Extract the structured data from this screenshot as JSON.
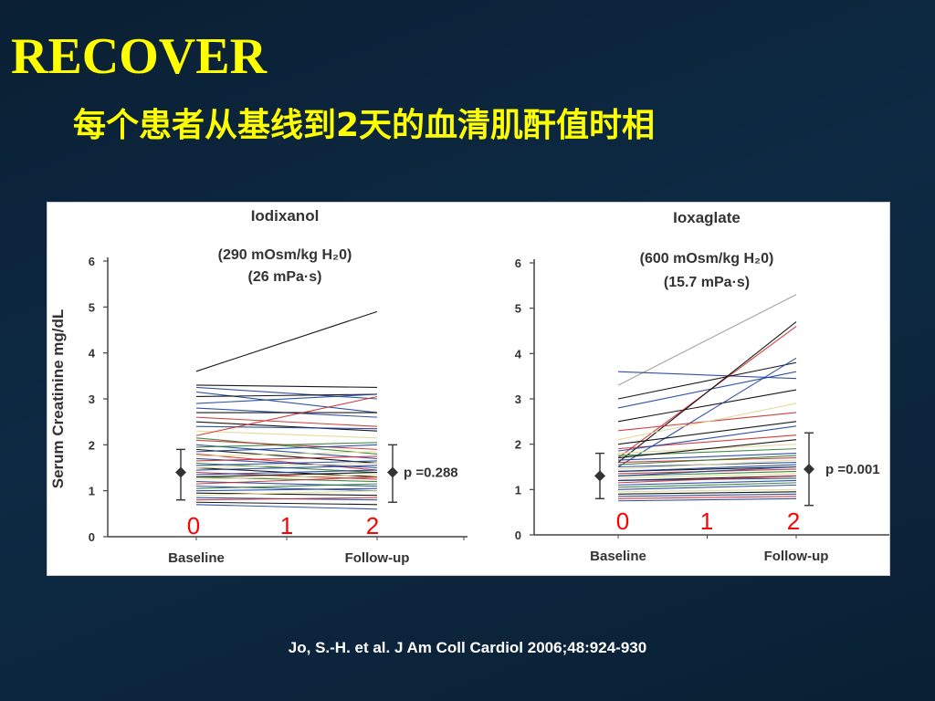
{
  "slide": {
    "title": "RECOVER",
    "subtitle": "每个患者从基线到2天的血清肌酐值时相",
    "citation": "Jo, S.-H. et al. J Am Coll Cardiol 2006;48:924-930"
  },
  "colors": {
    "title_text": "#ffff00",
    "background": "#0b2238",
    "annotation_red": "#ff0000"
  },
  "chart_data": [
    {
      "type": "line",
      "title": "Iodixanol",
      "subtitle_lines": [
        "(290 mOsm/kg H₂0)",
        "(26 mPa·s)"
      ],
      "ylabel": "Serum Creatinine mg/dL",
      "xlabel": "",
      "categories": [
        "Baseline",
        "Follow-up"
      ],
      "ylim": [
        0,
        6
      ],
      "yticks": [
        0,
        1,
        2,
        3,
        4,
        5,
        6
      ],
      "grid": false,
      "legend": "none",
      "p_value_label": "p =0.288",
      "summary": {
        "baseline": {
          "mean": 1.4,
          "low": 0.8,
          "high": 1.9
        },
        "followup": {
          "mean": 1.4,
          "low": 0.75,
          "high": 2.0
        }
      },
      "day_annotations": [
        "0",
        "1",
        "2"
      ],
      "series": [
        {
          "values": [
            3.6,
            4.9
          ],
          "color": "#000000"
        },
        {
          "values": [
            3.3,
            3.25
          ],
          "color": "#000000"
        },
        {
          "values": [
            3.25,
            3.0
          ],
          "color": "#1a3f9c"
        },
        {
          "values": [
            3.15,
            2.7
          ],
          "color": "#1a3f9c"
        },
        {
          "values": [
            3.05,
            3.1
          ],
          "color": "#000000"
        },
        {
          "values": [
            2.9,
            3.1
          ],
          "color": "#1a3f9c"
        },
        {
          "values": [
            2.8,
            2.6
          ],
          "color": "#1a3f9c"
        },
        {
          "values": [
            2.7,
            2.7
          ],
          "color": "#000000"
        },
        {
          "values": [
            2.6,
            2.4
          ],
          "color": "#cc2a2a"
        },
        {
          "values": [
            2.5,
            2.3
          ],
          "color": "#000000"
        },
        {
          "values": [
            2.4,
            2.35
          ],
          "color": "#1a3f9c"
        },
        {
          "values": [
            2.3,
            2.15
          ],
          "color": "#e0d890"
        },
        {
          "values": [
            2.2,
            3.05
          ],
          "color": "#cc2a2a"
        },
        {
          "values": [
            2.15,
            1.8
          ],
          "color": "#2e7d32"
        },
        {
          "values": [
            2.1,
            1.9
          ],
          "color": "#cc2a2a"
        },
        {
          "values": [
            2.0,
            1.7
          ],
          "color": "#1a3f9c"
        },
        {
          "values": [
            1.95,
            2.05
          ],
          "color": "#2e7d32"
        },
        {
          "values": [
            1.9,
            1.6
          ],
          "color": "#000000"
        },
        {
          "values": [
            1.85,
            2.0
          ],
          "color": "#1a3f9c"
        },
        {
          "values": [
            1.8,
            1.45
          ],
          "color": "#cc2a2a"
        },
        {
          "values": [
            1.75,
            1.85
          ],
          "color": "#e0d890"
        },
        {
          "values": [
            1.7,
            1.5
          ],
          "color": "#1a3f9c"
        },
        {
          "values": [
            1.65,
            1.75
          ],
          "color": "#cc2a2a"
        },
        {
          "values": [
            1.6,
            1.4
          ],
          "color": "#2e7d32"
        },
        {
          "values": [
            1.55,
            1.65
          ],
          "color": "#1a3f9c"
        },
        {
          "values": [
            1.5,
            1.3
          ],
          "color": "#000000"
        },
        {
          "values": [
            1.5,
            1.6
          ],
          "color": "#e0d890"
        },
        {
          "values": [
            1.45,
            1.55
          ],
          "color": "#1a3f9c"
        },
        {
          "values": [
            1.4,
            1.25
          ],
          "color": "#cc2a2a"
        },
        {
          "values": [
            1.35,
            1.45
          ],
          "color": "#1a3f9c"
        },
        {
          "values": [
            1.3,
            1.2
          ],
          "color": "#2e7d32"
        },
        {
          "values": [
            1.3,
            1.4
          ],
          "color": "#000000"
        },
        {
          "values": [
            1.25,
            1.35
          ],
          "color": "#e0d890"
        },
        {
          "values": [
            1.2,
            1.1
          ],
          "color": "#1a3f9c"
        },
        {
          "values": [
            1.15,
            1.3
          ],
          "color": "#cc2a2a"
        },
        {
          "values": [
            1.1,
            1.0
          ],
          "color": "#1a3f9c"
        },
        {
          "values": [
            1.05,
            1.15
          ],
          "color": "#2e7d32"
        },
        {
          "values": [
            1.0,
            1.05
          ],
          "color": "#1a3f9c"
        },
        {
          "values": [
            0.95,
            0.9
          ],
          "color": "#000000"
        },
        {
          "values": [
            0.9,
            1.0
          ],
          "color": "#e0d890"
        },
        {
          "values": [
            0.85,
            0.8
          ],
          "color": "#1a3f9c"
        },
        {
          "values": [
            0.8,
            0.85
          ],
          "color": "#cc2a2a"
        },
        {
          "values": [
            0.75,
            0.7
          ],
          "color": "#000000"
        },
        {
          "values": [
            0.7,
            0.6
          ],
          "color": "#1a3f9c"
        }
      ]
    },
    {
      "type": "line",
      "title": "Ioxaglate",
      "subtitle_lines": [
        "(600 mOsm/kg H₂0)",
        "(15.7 mPa·s)"
      ],
      "ylabel": "",
      "xlabel": "",
      "categories": [
        "Baseline",
        "Follow-up"
      ],
      "ylim": [
        0,
        6
      ],
      "yticks": [
        0,
        1,
        2,
        3,
        4,
        5,
        6
      ],
      "grid": false,
      "legend": "none",
      "p_value_label": "p =0.001",
      "summary": {
        "baseline": {
          "mean": 1.3,
          "low": 0.8,
          "high": 1.8
        },
        "followup": {
          "mean": 1.45,
          "low": 0.65,
          "high": 2.25
        }
      },
      "day_annotations": [
        "0",
        "1",
        "2"
      ],
      "series": [
        {
          "values": [
            3.3,
            5.3
          ],
          "color": "#9a9a9a"
        },
        {
          "values": [
            3.6,
            3.45
          ],
          "color": "#1a3f9c"
        },
        {
          "values": [
            3.0,
            3.8
          ],
          "color": "#000000"
        },
        {
          "values": [
            2.8,
            3.6
          ],
          "color": "#1a3f9c"
        },
        {
          "values": [
            2.5,
            3.2
          ],
          "color": "#000000"
        },
        {
          "values": [
            1.7,
            4.6
          ],
          "color": "#cc2a2a"
        },
        {
          "values": [
            1.6,
            4.7
          ],
          "color": "#000000"
        },
        {
          "values": [
            1.5,
            3.9
          ],
          "color": "#1a3f9c"
        },
        {
          "values": [
            2.3,
            2.7
          ],
          "color": "#cc2a2a"
        },
        {
          "values": [
            2.1,
            2.9
          ],
          "color": "#e0d890"
        },
        {
          "values": [
            2.0,
            2.5
          ],
          "color": "#000000"
        },
        {
          "values": [
            1.9,
            2.2
          ],
          "color": "#cc2a2a"
        },
        {
          "values": [
            1.85,
            2.4
          ],
          "color": "#1a3f9c"
        },
        {
          "values": [
            1.8,
            2.0
          ],
          "color": "#e0d890"
        },
        {
          "values": [
            1.75,
            1.9
          ],
          "color": "#2e7d32"
        },
        {
          "values": [
            1.7,
            2.1
          ],
          "color": "#000000"
        },
        {
          "values": [
            1.65,
            1.8
          ],
          "color": "#1a3f9c"
        },
        {
          "values": [
            1.6,
            1.7
          ],
          "color": "#cc2a2a"
        },
        {
          "values": [
            1.55,
            1.75
          ],
          "color": "#2e7d32"
        },
        {
          "values": [
            1.5,
            1.6
          ],
          "color": "#1a3f9c"
        },
        {
          "values": [
            1.45,
            1.65
          ],
          "color": "#e0d890"
        },
        {
          "values": [
            1.4,
            1.5
          ],
          "color": "#000000"
        },
        {
          "values": [
            1.4,
            1.55
          ],
          "color": "#1a3f9c"
        },
        {
          "values": [
            1.35,
            1.45
          ],
          "color": "#cc2a2a"
        },
        {
          "values": [
            1.3,
            1.4
          ],
          "color": "#2e7d32"
        },
        {
          "values": [
            1.3,
            1.5
          ],
          "color": "#1a3f9c"
        },
        {
          "values": [
            1.25,
            1.35
          ],
          "color": "#e0d890"
        },
        {
          "values": [
            1.2,
            1.3
          ],
          "color": "#000000"
        },
        {
          "values": [
            1.2,
            1.25
          ],
          "color": "#1a3f9c"
        },
        {
          "values": [
            1.15,
            1.3
          ],
          "color": "#cc2a2a"
        },
        {
          "values": [
            1.1,
            1.2
          ],
          "color": "#1a3f9c"
        },
        {
          "values": [
            1.05,
            1.15
          ],
          "color": "#2e7d32"
        },
        {
          "values": [
            1.0,
            1.1
          ],
          "color": "#1a3f9c"
        },
        {
          "values": [
            0.95,
            1.0
          ],
          "color": "#e0d890"
        },
        {
          "values": [
            0.9,
            0.95
          ],
          "color": "#000000"
        },
        {
          "values": [
            0.85,
            0.9
          ],
          "color": "#1a3f9c"
        },
        {
          "values": [
            0.8,
            0.85
          ],
          "color": "#cc2a2a"
        },
        {
          "values": [
            0.75,
            0.8
          ],
          "color": "#1a3f9c"
        }
      ]
    }
  ]
}
